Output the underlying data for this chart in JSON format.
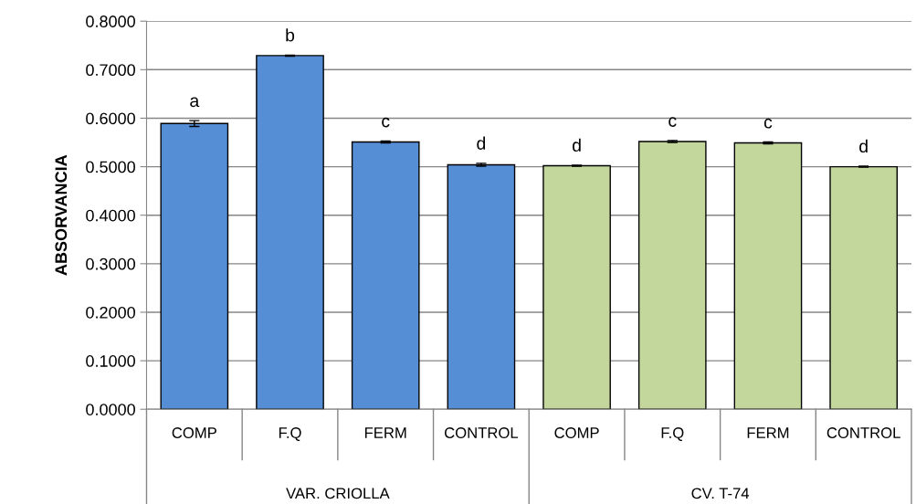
{
  "chart_data": {
    "type": "bar",
    "ylabel": "ABSORVANCIA",
    "categories": [
      "COMP",
      "F.Q",
      "FERM",
      "CONTROL",
      "COMP",
      "F.Q",
      "FERM",
      "CONTROL"
    ],
    "values": [
      0.589,
      0.729,
      0.551,
      0.504,
      0.502,
      0.552,
      0.549,
      0.5
    ],
    "errors": [
      0.006,
      0.001,
      0.002,
      0.003,
      0.001,
      0.002,
      0.002,
      0.001
    ],
    "colors": [
      "#558ed5",
      "#558ed5",
      "#558ed5",
      "#558ed5",
      "#c3d69b",
      "#c3d69b",
      "#c3d69b",
      "#c3d69b"
    ],
    "value_labels": [
      "a",
      "b",
      "c",
      "d",
      "d",
      "c",
      "c",
      "d"
    ],
    "annotations": [
      "VAR. CRIOLLA",
      "CV. T-74"
    ],
    "ylim": [
      0,
      0.8
    ],
    "yticks": [
      {
        "value": 0,
        "label": "0.0000"
      },
      {
        "value": 0.1,
        "label": "0.1000"
      },
      {
        "value": 0.2,
        "label": "0.2000"
      },
      {
        "value": 0.3,
        "label": "0.3000"
      },
      {
        "value": 0.4,
        "label": "0.4000"
      },
      {
        "value": 0.5,
        "label": "0.5000"
      },
      {
        "value": 0.6,
        "label": "0.6000"
      },
      {
        "value": 0.7,
        "label": "0.7000"
      },
      {
        "value": 0.8,
        "label": "0.8000"
      }
    ],
    "grid": "y"
  }
}
